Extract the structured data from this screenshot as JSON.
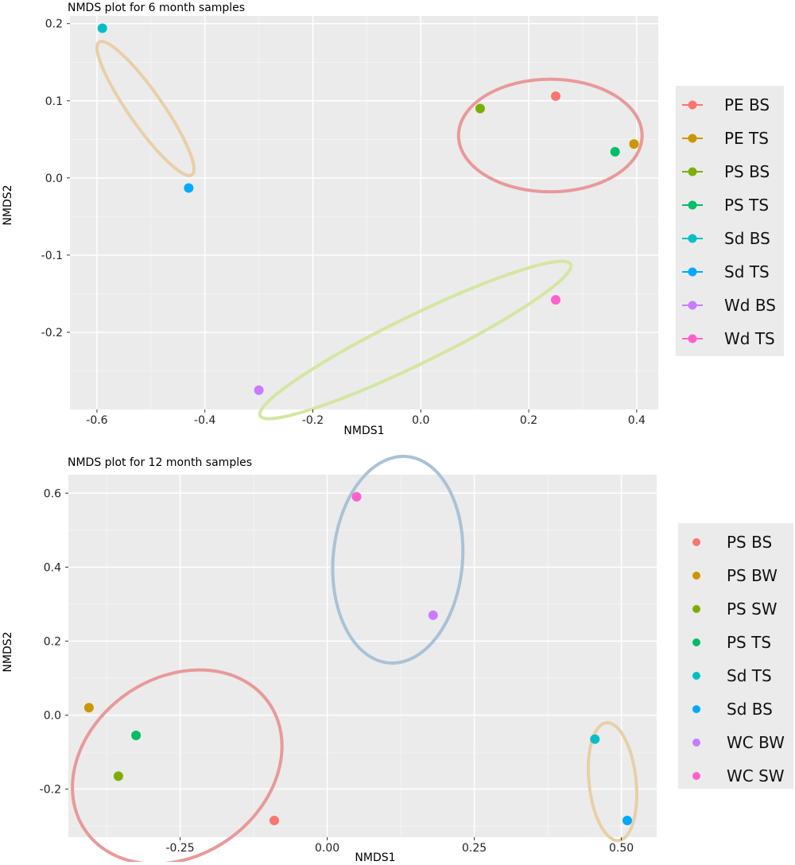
{
  "chart_data": [
    {
      "type": "scatter",
      "title": "NMDS plot for 6 month samples",
      "xlabel": "NMDS1",
      "ylabel": "NMDS2",
      "xlim": [
        -0.65,
        0.44
      ],
      "ylim": [
        -0.3,
        0.21
      ],
      "xticks": [
        -0.6,
        -0.4,
        -0.2,
        0.0,
        0.2,
        0.4
      ],
      "xtick_labels": [
        "-0.6",
        "-0.4",
        "-0.2",
        "0.0",
        "0.2",
        "0.4"
      ],
      "yticks": [
        0.2,
        0.1,
        0.0,
        -0.1,
        -0.2
      ],
      "ytick_labels": [
        "0.2",
        "0.1",
        "0.0",
        "-0.1",
        "-0.2"
      ],
      "grid": true,
      "legend_position": "right",
      "series": [
        {
          "name": "PE BS",
          "color": "#F8766D",
          "x": 0.25,
          "y": 0.106
        },
        {
          "name": "PE TS",
          "color": "#CD9600",
          "x": 0.395,
          "y": 0.044
        },
        {
          "name": "PS BS",
          "color": "#7CAE00",
          "x": 0.11,
          "y": 0.09
        },
        {
          "name": "PS TS",
          "color": "#00BE67",
          "x": 0.36,
          "y": 0.034
        },
        {
          "name": "Sd BS",
          "color": "#00BFC4",
          "x": -0.59,
          "y": 0.194
        },
        {
          "name": "Sd TS",
          "color": "#00A9FF",
          "x": -0.43,
          "y": -0.013
        },
        {
          "name": "Wd BS",
          "color": "#C77CFF",
          "x": -0.3,
          "y": -0.275
        },
        {
          "name": "Wd TS",
          "color": "#FF61CC",
          "x": 0.25,
          "y": -0.158
        }
      ],
      "clusters": [
        {
          "color": "#E8999A",
          "cx": 0.24,
          "cy": 0.055,
          "rx": 0.17,
          "ry": 0.073,
          "angle": 0
        },
        {
          "color": "#E8CFA8",
          "cx": -0.51,
          "cy": 0.09,
          "rx": 0.15,
          "ry": 0.022,
          "angle": 55
        },
        {
          "color": "#D4E6A0",
          "cx": -0.01,
          "cy": -0.21,
          "rx": 0.32,
          "ry": 0.031,
          "angle": -26
        }
      ]
    },
    {
      "type": "scatter",
      "title": "NMDS plot for 12 month samples",
      "xlabel": "NMDS1",
      "ylabel": "NMDS2",
      "xlim": [
        -0.44,
        0.56
      ],
      "ylim": [
        -0.33,
        0.65
      ],
      "xticks": [
        -0.25,
        0.0,
        0.25,
        0.5
      ],
      "xtick_labels": [
        "-0.25",
        "0.00",
        "0.25",
        "0.50"
      ],
      "yticks": [
        0.6,
        0.4,
        0.2,
        0.0,
        -0.2
      ],
      "ytick_labels": [
        "0.6",
        "0.4",
        "0.2",
        "0.0",
        "-0.2"
      ],
      "grid": true,
      "legend_position": "right",
      "series": [
        {
          "name": "PS BS",
          "color": "#F8766D",
          "x": -0.09,
          "y": -0.285
        },
        {
          "name": "PS BW",
          "color": "#CD9600",
          "x": -0.405,
          "y": 0.02
        },
        {
          "name": "PS SW",
          "color": "#7CAE00",
          "x": -0.355,
          "y": -0.165
        },
        {
          "name": "PS TS",
          "color": "#00BE67",
          "x": -0.325,
          "y": -0.055
        },
        {
          "name": "Sd TS",
          "color": "#00BFC4",
          "x": 0.455,
          "y": -0.065
        },
        {
          "name": "Sd BS",
          "color": "#00A9FF",
          "x": 0.51,
          "y": -0.285
        },
        {
          "name": "WC BW",
          "color": "#C77CFF",
          "x": 0.18,
          "y": 0.27
        },
        {
          "name": "WC SW",
          "color": "#FF61CC",
          "x": 0.05,
          "y": 0.59
        }
      ],
      "clusters": [
        {
          "color": "#E8999A",
          "cx": -0.255,
          "cy": -0.14,
          "rx": 0.19,
          "ry": 0.24,
          "angle": -35
        },
        {
          "color": "#A9C2D6",
          "cx": 0.12,
          "cy": 0.42,
          "rx": 0.11,
          "ry": 0.28,
          "angle": 5
        },
        {
          "color": "#E8CFA8",
          "cx": 0.485,
          "cy": -0.18,
          "rx": 0.04,
          "ry": 0.16,
          "angle": -6
        }
      ]
    }
  ]
}
